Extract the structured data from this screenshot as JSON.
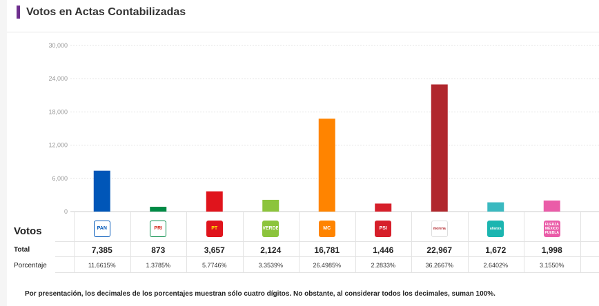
{
  "header": {
    "title": "Votos en Actas Contabilizadas"
  },
  "table": {
    "votos_label": "Votos",
    "total_label": "Total",
    "pct_label": "Porcentaje"
  },
  "note": "Por presentación, los decimales de los porcentajes muestran sólo cuatro dígitos. No obstante, al considerar todos los decimales, suman 100%.",
  "chart_data": {
    "type": "bar",
    "categories": [
      "PAN",
      "PRI",
      "PT",
      "VERDE",
      "MC",
      "PSI",
      "morena",
      "alianza",
      "FUERZA MÉXICO PUEBLA"
    ],
    "values": [
      7385,
      873,
      3657,
      2124,
      16781,
      1446,
      22967,
      1672,
      1998
    ],
    "totals_text": [
      "7,385",
      "873",
      "3,657",
      "2,124",
      "16,781",
      "1,446",
      "22,967",
      "1,672",
      "1,998"
    ],
    "percentages": [
      "11.6615%",
      "1.3785%",
      "5.7746%",
      "3.3539%",
      "26.4985%",
      "2.2833%",
      "36.2667%",
      "2.6402%",
      "3.1550%"
    ],
    "colors": [
      "#0056b8",
      "#008a45",
      "#e0141c",
      "#8cc43c",
      "#ff8400",
      "#d61f2a",
      "#b0272d",
      "#3ab9c0",
      "#ea5ca8"
    ],
    "yticks": [
      "0",
      "6,000",
      "12,000",
      "18,000",
      "24,000",
      "30,000"
    ],
    "ylim": [
      0,
      30000
    ],
    "grid": true,
    "logos": [
      {
        "icon": "pan-logo-icon",
        "text": "PAN",
        "bg": "#ffffff",
        "fg": "#0056b8",
        "border": "#0056b8"
      },
      {
        "icon": "pri-logo-icon",
        "text": "PRI",
        "bg": "#ffffff",
        "fg": "#d52b1e",
        "border": "#008a45"
      },
      {
        "icon": "pt-logo-icon",
        "text": "PT",
        "bg": "#e0141c",
        "fg": "#ffe600",
        "border": "#e0141c"
      },
      {
        "icon": "verde-logo-icon",
        "text": "VERDE",
        "bg": "#8cc43c",
        "fg": "#ffffff",
        "border": "#8cc43c"
      },
      {
        "icon": "mc-logo-icon",
        "text": "MC",
        "bg": "#ff8400",
        "fg": "#ffffff",
        "border": "#ff8400"
      },
      {
        "icon": "psi-logo-icon",
        "text": "PSI",
        "bg": "#d61f2a",
        "fg": "#ffffff",
        "border": "#d61f2a"
      },
      {
        "icon": "morena-logo-icon",
        "text": "morena",
        "bg": "#ffffff",
        "fg": "#b0272d",
        "border": "#dddddd"
      },
      {
        "icon": "alianza-logo-icon",
        "text": "alianza",
        "bg": "#1bb5b0",
        "fg": "#ffffff",
        "border": "#1bb5b0"
      },
      {
        "icon": "fuerza-logo-icon",
        "text": "FUERZA MÉXICO PUEBLA",
        "bg": "#ea5ca8",
        "fg": "#ffffff",
        "border": "#ea5ca8"
      }
    ]
  }
}
